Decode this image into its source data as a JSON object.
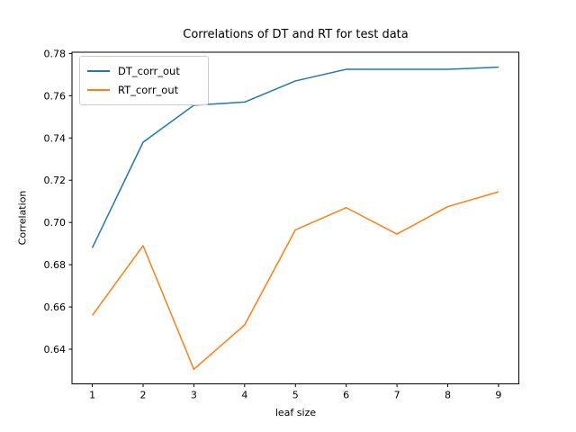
{
  "chart_data": {
    "type": "line",
    "title": "Correlations of DT and RT for test data",
    "xlabel": "leaf size",
    "ylabel": "Correlation",
    "x": [
      1,
      2,
      3,
      4,
      5,
      6,
      7,
      8,
      9
    ],
    "series": [
      {
        "name": "DT_corr_out",
        "color": "#1f77b4",
        "values": [
          0.688,
          0.738,
          0.7555,
          0.757,
          0.767,
          0.7725,
          0.7725,
          0.7725,
          0.7735
        ]
      },
      {
        "name": "RT_corr_out",
        "color": "#ff7f0e",
        "values": [
          0.656,
          0.689,
          0.6305,
          0.6515,
          0.6965,
          0.707,
          0.6945,
          0.7075,
          0.7145
        ]
      }
    ],
    "xlim": [
      0.6,
      9.4
    ],
    "ylim": [
      0.6236,
      0.7806
    ],
    "x_ticks": [
      1,
      2,
      3,
      4,
      5,
      6,
      7,
      8,
      9
    ],
    "x_tick_labels": [
      "1",
      "2",
      "3",
      "4",
      "5",
      "6",
      "7",
      "8",
      "9"
    ],
    "y_ticks": [
      0.64,
      0.66,
      0.68,
      0.7,
      0.72,
      0.74,
      0.76,
      0.78
    ],
    "y_tick_labels": [
      "0.64",
      "0.66",
      "0.68",
      "0.70",
      "0.72",
      "0.74",
      "0.76",
      "0.78"
    ],
    "grid": false,
    "legend_position": "upper-left",
    "line_width": 1.5,
    "axis_color": "#000000",
    "background_color": "#ffffff"
  }
}
